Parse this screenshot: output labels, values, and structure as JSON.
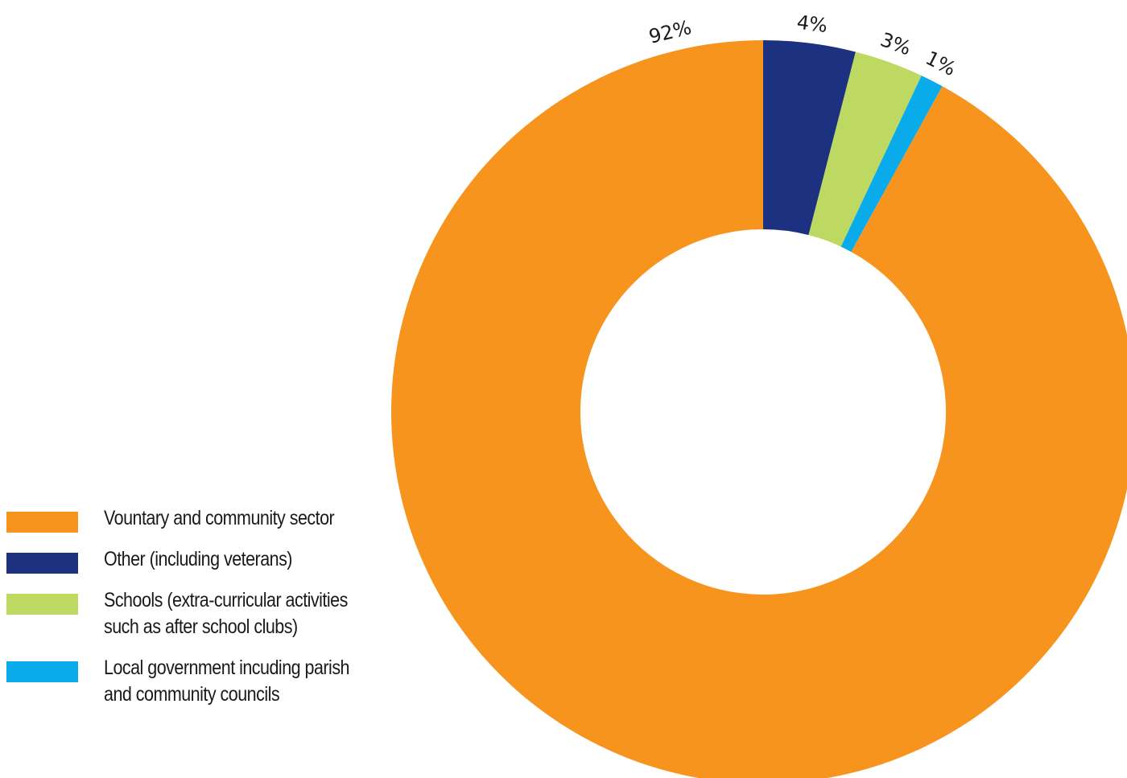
{
  "chart_data": {
    "type": "pie",
    "donut": true,
    "title": "",
    "categories": [
      "Vountary and community sector",
      "Other (including veterans)",
      "Schools (extra-curricular activities such as after school clubs)",
      "Local government incuding parish and community councils"
    ],
    "values": [
      92,
      4,
      3,
      1
    ],
    "data_labels": [
      "92%",
      "4%",
      "3%",
      "1%"
    ],
    "colors": [
      "#F7941E",
      "#1C317F",
      "#BED961",
      "#0AABEA"
    ],
    "legend_position": "left-bottom"
  }
}
